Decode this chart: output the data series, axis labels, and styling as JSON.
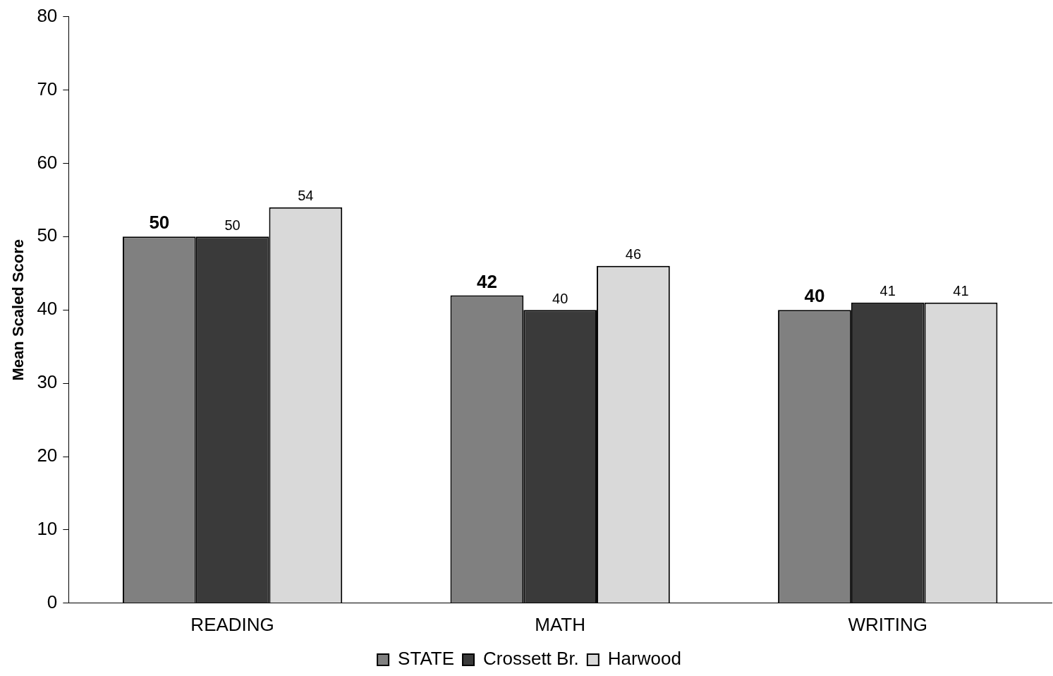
{
  "chart_data": {
    "type": "bar",
    "ylabel": "Mean Scaled Score",
    "categories": [
      "READING",
      "MATH",
      "WRITING"
    ],
    "series": [
      {
        "name": "STATE",
        "color": "#808080",
        "values": [
          50,
          42,
          40
        ]
      },
      {
        "name": "Crossett Br.",
        "color": "#3a3a3a",
        "values": [
          50,
          40,
          41
        ]
      },
      {
        "name": "Harwood",
        "color": "#d9d9d9",
        "values": [
          54,
          46,
          41
        ]
      }
    ],
    "ylim": [
      0,
      80
    ],
    "yticks": [
      0,
      10,
      20,
      30,
      40,
      50,
      60,
      70,
      80
    ],
    "grid": false,
    "legend": "bottom",
    "data_labels": true
  }
}
